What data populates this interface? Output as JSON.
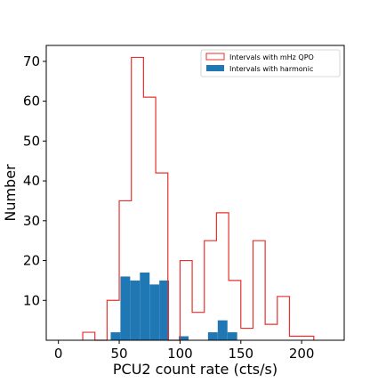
{
  "chart_data": {
    "type": "histogram",
    "xlabel": "PCU2 count rate (cts/s)",
    "ylabel": "Number",
    "xlim": [
      -10,
      235
    ],
    "ylim": [
      0,
      74
    ],
    "x_ticks": [
      0,
      50,
      100,
      150,
      200
    ],
    "y_ticks": [
      10,
      20,
      30,
      40,
      50,
      60,
      70
    ],
    "grid": false,
    "legend_position": "top-right",
    "series": [
      {
        "name": "Intervals with mHz QPO",
        "style": "step",
        "color": "#e8302c",
        "bins": [
          {
            "x0": 20,
            "x1": 30,
            "count": 2
          },
          {
            "x0": 30,
            "x1": 40,
            "count": 0
          },
          {
            "x0": 40,
            "x1": 50,
            "count": 10
          },
          {
            "x0": 50,
            "x1": 60,
            "count": 35
          },
          {
            "x0": 60,
            "x1": 70,
            "count": 71
          },
          {
            "x0": 70,
            "x1": 80,
            "count": 61
          },
          {
            "x0": 80,
            "x1": 90,
            "count": 42
          },
          {
            "x0": 90,
            "x1": 100,
            "count": 0
          },
          {
            "x0": 100,
            "x1": 110,
            "count": 20
          },
          {
            "x0": 110,
            "x1": 120,
            "count": 7
          },
          {
            "x0": 120,
            "x1": 130,
            "count": 25
          },
          {
            "x0": 130,
            "x1": 140,
            "count": 32
          },
          {
            "x0": 140,
            "x1": 150,
            "count": 15
          },
          {
            "x0": 150,
            "x1": 160,
            "count": 3
          },
          {
            "x0": 160,
            "x1": 170,
            "count": 25
          },
          {
            "x0": 170,
            "x1": 180,
            "count": 4
          },
          {
            "x0": 180,
            "x1": 190,
            "count": 11
          },
          {
            "x0": 190,
            "x1": 210,
            "count": 1
          }
        ]
      },
      {
        "name": "Intervals with harmonic",
        "style": "filled",
        "color": "#1f77b4",
        "bins": [
          {
            "x0": 43,
            "x1": 51,
            "count": 2
          },
          {
            "x0": 51,
            "x1": 59,
            "count": 16
          },
          {
            "x0": 59,
            "x1": 67,
            "count": 15
          },
          {
            "x0": 67,
            "x1": 75,
            "count": 17
          },
          {
            "x0": 75,
            "x1": 83,
            "count": 14
          },
          {
            "x0": 83,
            "x1": 91,
            "count": 15
          },
          {
            "x0": 99,
            "x1": 107,
            "count": 1
          },
          {
            "x0": 123,
            "x1": 131,
            "count": 2
          },
          {
            "x0": 131,
            "x1": 139,
            "count": 5
          },
          {
            "x0": 139,
            "x1": 147,
            "count": 2
          }
        ]
      }
    ]
  }
}
